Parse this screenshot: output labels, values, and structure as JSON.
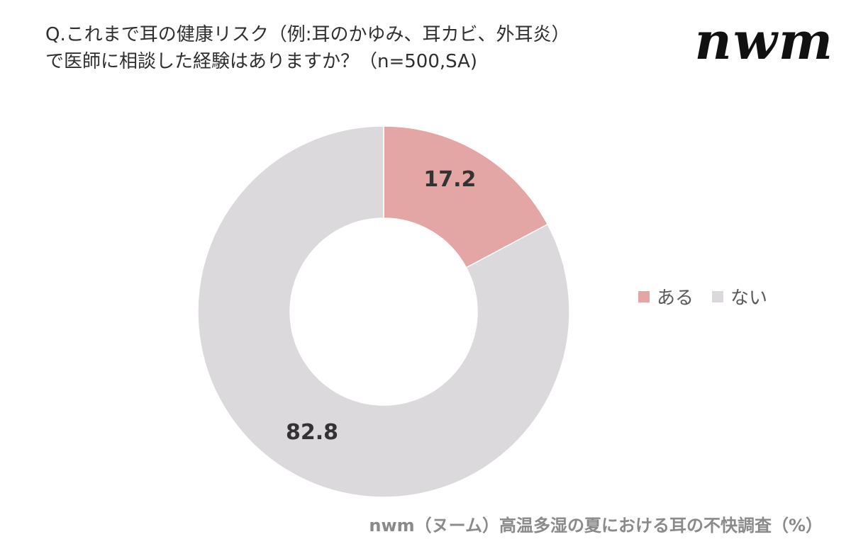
{
  "question": {
    "line1": "Q.これまで耳の健康リスク（例:耳のかゆみ、耳カビ、外耳炎）",
    "line2": "で医師に相談した経験はありますか？（n=500,SA)"
  },
  "logo": {
    "text": "nwm"
  },
  "source": {
    "text": "nwm（ヌーム）高温多湿の夏における耳の不快調査（%）"
  },
  "chart_data": {
    "type": "pie",
    "variant": "donut",
    "categories": [
      "ある",
      "ない"
    ],
    "values": [
      17.2,
      82.8
    ],
    "data_labels": [
      "17.2",
      "82.8"
    ],
    "colors": [
      "#e4a6a4",
      "#dcd9dc"
    ],
    "legend": [
      "ある",
      "ない"
    ],
    "legend_position": "right",
    "title": "",
    "unit": "%"
  }
}
